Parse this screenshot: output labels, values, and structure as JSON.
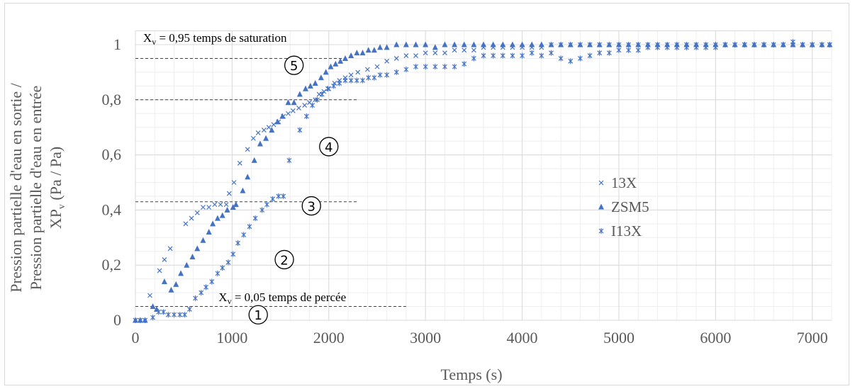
{
  "chart_data": {
    "type": "scatter",
    "xlabel": "Temps (s)",
    "ylabel_lines": [
      "Pression partielle d'eau en sortie /",
      "Pression partielle d'eau en entrée",
      "XPv (Pa / Pa)"
    ],
    "ylabel_xp": "XP",
    "ylabel_sub": "v",
    "ylabel_units": " (Pa / Pa)",
    "xlim": [
      0,
      7200
    ],
    "ylim": [
      0,
      1
    ],
    "x_ticks": [
      "0",
      "1000",
      "2000",
      "3000",
      "4000",
      "5000",
      "6000",
      "7000"
    ],
    "y_ticks": [
      "0",
      "0,2",
      "0,4",
      "0,6",
      "0,8",
      "1"
    ],
    "grid": true,
    "legend_position": "right",
    "series": [
      {
        "name": "13X",
        "marker": "x",
        "color": "#4472c4",
        "points": [
          [
            0,
            0
          ],
          [
            50,
            0
          ],
          [
            100,
            0
          ],
          [
            150,
            0.09
          ],
          [
            250,
            0.18
          ],
          [
            300,
            0.22
          ],
          [
            360,
            0.26
          ],
          [
            520,
            0.35
          ],
          [
            580,
            0.37
          ],
          [
            640,
            0.39
          ],
          [
            700,
            0.41
          ],
          [
            760,
            0.41
          ],
          [
            820,
            0.42
          ],
          [
            880,
            0.42
          ],
          [
            940,
            0.42
          ],
          [
            970,
            0.46
          ],
          [
            1020,
            0.5
          ],
          [
            1080,
            0.57
          ],
          [
            1160,
            0.62
          ],
          [
            1220,
            0.66
          ],
          [
            1270,
            0.68
          ],
          [
            1330,
            0.69
          ],
          [
            1380,
            0.7
          ],
          [
            1430,
            0.71
          ],
          [
            1480,
            0.72
          ],
          [
            1530,
            0.74
          ],
          [
            1580,
            0.75
          ],
          [
            1630,
            0.76
          ],
          [
            1690,
            0.77
          ],
          [
            1750,
            0.78
          ],
          [
            1800,
            0.79
          ],
          [
            1860,
            0.8
          ],
          [
            1900,
            0.82
          ],
          [
            1950,
            0.83
          ],
          [
            2000,
            0.84
          ],
          [
            2060,
            0.86
          ],
          [
            2110,
            0.87
          ],
          [
            2170,
            0.88
          ],
          [
            2230,
            0.89
          ],
          [
            2300,
            0.9
          ],
          [
            2400,
            0.91
          ],
          [
            2500,
            0.92
          ],
          [
            2600,
            0.94
          ],
          [
            2700,
            0.95
          ],
          [
            2800,
            0.96
          ],
          [
            2900,
            0.96
          ],
          [
            3000,
            0.97
          ],
          [
            3100,
            0.97
          ],
          [
            3200,
            0.97
          ],
          [
            3300,
            0.98
          ],
          [
            3400,
            0.98
          ],
          [
            3500,
            0.98
          ],
          [
            3600,
            0.99
          ],
          [
            3700,
            0.99
          ],
          [
            3800,
            0.99
          ],
          [
            3900,
            0.99
          ],
          [
            4000,
            0.99
          ],
          [
            4100,
            0.99
          ],
          [
            4200,
            0.99
          ],
          [
            4300,
            1.0
          ],
          [
            4400,
            1.0
          ],
          [
            4500,
            1.0
          ],
          [
            4600,
            1.0
          ],
          [
            4700,
            1.0
          ],
          [
            4800,
            1.0
          ],
          [
            4900,
            1.0
          ],
          [
            5000,
            1.0
          ],
          [
            5100,
            1.0
          ],
          [
            5200,
            1.0
          ],
          [
            5300,
            1.0
          ],
          [
            5400,
            1.0
          ],
          [
            5500,
            1.0
          ],
          [
            5600,
            1.0
          ],
          [
            5700,
            1.0
          ],
          [
            5800,
            1.0
          ],
          [
            5900,
            1.0
          ],
          [
            6000,
            1.0
          ],
          [
            6100,
            1.0
          ],
          [
            6200,
            1.0
          ],
          [
            6300,
            1.0
          ],
          [
            6400,
            1.0
          ],
          [
            6500,
            1.0
          ],
          [
            6600,
            1.0
          ],
          [
            6700,
            1.0
          ],
          [
            6800,
            1.0
          ],
          [
            6900,
            1.0
          ],
          [
            7000,
            1.0
          ],
          [
            7100,
            1.0
          ],
          [
            7180,
            1.0
          ]
        ]
      },
      {
        "name": "ZSM5",
        "marker": "triangle",
        "color": "#4472c4",
        "points": [
          [
            0,
            0
          ],
          [
            50,
            0
          ],
          [
            100,
            0
          ],
          [
            180,
            0.05
          ],
          [
            220,
            0.04
          ],
          [
            300,
            0.14
          ],
          [
            370,
            0.11
          ],
          [
            420,
            0.13
          ],
          [
            470,
            0.17
          ],
          [
            530,
            0.2
          ],
          [
            590,
            0.23
          ],
          [
            640,
            0.26
          ],
          [
            700,
            0.29
          ],
          [
            760,
            0.32
          ],
          [
            800,
            0.35
          ],
          [
            850,
            0.37
          ],
          [
            900,
            0.38
          ],
          [
            950,
            0.4
          ],
          [
            1010,
            0.41
          ],
          [
            1040,
            0.42
          ],
          [
            1110,
            0.47
          ],
          [
            1160,
            0.52
          ],
          [
            1230,
            0.58
          ],
          [
            1290,
            0.64
          ],
          [
            1350,
            0.66
          ],
          [
            1410,
            0.69
          ],
          [
            1470,
            0.72
          ],
          [
            1520,
            0.74
          ],
          [
            1580,
            0.79
          ],
          [
            1640,
            0.79
          ],
          [
            1700,
            0.82
          ],
          [
            1760,
            0.84
          ],
          [
            1810,
            0.85
          ],
          [
            1860,
            0.86
          ],
          [
            1920,
            0.88
          ],
          [
            1970,
            0.9
          ],
          [
            2020,
            0.92
          ],
          [
            2070,
            0.93
          ],
          [
            2120,
            0.94
          ],
          [
            2170,
            0.95
          ],
          [
            2230,
            0.96
          ],
          [
            2290,
            0.97
          ],
          [
            2350,
            0.97
          ],
          [
            2410,
            0.98
          ],
          [
            2470,
            0.98
          ],
          [
            2530,
            0.99
          ],
          [
            2600,
            0.99
          ],
          [
            2700,
            1.0
          ],
          [
            2800,
            1.0
          ],
          [
            2900,
            1.0
          ],
          [
            3000,
            1.0
          ],
          [
            3100,
            0.99
          ],
          [
            3200,
            1.0
          ],
          [
            3300,
            1.0
          ],
          [
            3400,
            1.0
          ],
          [
            3500,
            1.0
          ],
          [
            3600,
            1.0
          ],
          [
            3700,
            1.0
          ],
          [
            3800,
            1.0
          ],
          [
            3900,
            1.0
          ],
          [
            4000,
            1.0
          ],
          [
            4100,
            1.0
          ],
          [
            4200,
            1.0
          ],
          [
            4300,
            1.0
          ],
          [
            4400,
            1.0
          ],
          [
            4500,
            1.0
          ],
          [
            4600,
            1.0
          ],
          [
            4700,
            1.0
          ],
          [
            4800,
            1.0
          ],
          [
            4900,
            1.0
          ],
          [
            5000,
            1.0
          ],
          [
            5100,
            1.0
          ],
          [
            5200,
            1.0
          ],
          [
            5300,
            1.0
          ],
          [
            5400,
            1.0
          ],
          [
            5500,
            1.0
          ],
          [
            5600,
            1.0
          ],
          [
            5700,
            1.0
          ],
          [
            5800,
            1.0
          ],
          [
            5900,
            1.0
          ],
          [
            6000,
            1.0
          ],
          [
            6100,
            1.0
          ],
          [
            6200,
            1.0
          ],
          [
            6300,
            1.0
          ],
          [
            6400,
            1.0
          ],
          [
            6500,
            1.0
          ],
          [
            6600,
            1.0
          ],
          [
            6700,
            1.0
          ],
          [
            6800,
            1.0
          ],
          [
            6900,
            1.0
          ],
          [
            7000,
            1.0
          ],
          [
            7100,
            1.0
          ],
          [
            7180,
            1.0
          ]
        ]
      },
      {
        "name": "I13X",
        "marker": "asterisk",
        "color": "#4472c4",
        "points": [
          [
            0,
            0
          ],
          [
            50,
            0
          ],
          [
            100,
            0
          ],
          [
            180,
            0.01
          ],
          [
            240,
            0.03
          ],
          [
            290,
            0.03
          ],
          [
            340,
            0.02
          ],
          [
            400,
            0.02
          ],
          [
            460,
            0.02
          ],
          [
            510,
            0.02
          ],
          [
            560,
            0.04
          ],
          [
            620,
            0.08
          ],
          [
            680,
            0.1
          ],
          [
            730,
            0.12
          ],
          [
            790,
            0.14
          ],
          [
            850,
            0.17
          ],
          [
            900,
            0.19
          ],
          [
            960,
            0.21
          ],
          [
            1010,
            0.24
          ],
          [
            1060,
            0.28
          ],
          [
            1120,
            0.31
          ],
          [
            1180,
            0.34
          ],
          [
            1240,
            0.37
          ],
          [
            1310,
            0.4
          ],
          [
            1360,
            0.42
          ],
          [
            1420,
            0.44
          ],
          [
            1480,
            0.45
          ],
          [
            1530,
            0.45
          ],
          [
            1590,
            0.58
          ],
          [
            1700,
            0.69
          ],
          [
            1770,
            0.74
          ],
          [
            1830,
            0.78
          ],
          [
            1880,
            0.8
          ],
          [
            1930,
            0.82
          ],
          [
            1990,
            0.84
          ],
          [
            2050,
            0.85
          ],
          [
            2110,
            0.86
          ],
          [
            2170,
            0.87
          ],
          [
            2230,
            0.87
          ],
          [
            2290,
            0.87
          ],
          [
            2350,
            0.87
          ],
          [
            2410,
            0.88
          ],
          [
            2470,
            0.88
          ],
          [
            2530,
            0.89
          ],
          [
            2600,
            0.89
          ],
          [
            2700,
            0.9
          ],
          [
            2800,
            0.91
          ],
          [
            2900,
            0.92
          ],
          [
            3000,
            0.92
          ],
          [
            3100,
            0.92
          ],
          [
            3200,
            0.92
          ],
          [
            3300,
            0.92
          ],
          [
            3400,
            0.93
          ],
          [
            3500,
            0.95
          ],
          [
            3600,
            0.96
          ],
          [
            3700,
            0.96
          ],
          [
            3800,
            0.96
          ],
          [
            3900,
            0.96
          ],
          [
            4000,
            0.96
          ],
          [
            4100,
            0.97
          ],
          [
            4200,
            0.96
          ],
          [
            4300,
            0.97
          ],
          [
            4400,
            0.95
          ],
          [
            4500,
            0.94
          ],
          [
            4600,
            0.95
          ],
          [
            4700,
            0.96
          ],
          [
            4800,
            0.97
          ],
          [
            4900,
            0.97
          ],
          [
            5000,
            0.98
          ],
          [
            5100,
            0.98
          ],
          [
            5200,
            0.98
          ],
          [
            5300,
            0.99
          ],
          [
            5400,
            0.99
          ],
          [
            5500,
            0.99
          ],
          [
            5600,
            0.99
          ],
          [
            5700,
            0.99
          ],
          [
            5800,
            0.99
          ],
          [
            5900,
            0.99
          ],
          [
            6000,
            0.99
          ],
          [
            6100,
            1.0
          ],
          [
            6200,
            1.0
          ],
          [
            6300,
            1.0
          ],
          [
            6400,
            1.0
          ],
          [
            6500,
            1.0
          ],
          [
            6600,
            1.0
          ],
          [
            6700,
            1.0
          ],
          [
            6800,
            1.01
          ],
          [
            6900,
            1.0
          ],
          [
            7000,
            1.0
          ],
          [
            7100,
            1.0
          ],
          [
            7180,
            1.0
          ]
        ]
      }
    ],
    "reference_lines": [
      {
        "y": 0.95,
        "x_end": 2200
      },
      {
        "y": 0.8,
        "x_end": 2300
      },
      {
        "y": 0.43,
        "x_end": 2300
      },
      {
        "y": 0.05,
        "x_end": 2800
      }
    ],
    "annotations": [
      {
        "xv": "X",
        "sub": "v",
        "rest": " = 0,95 temps de saturation",
        "x": 80,
        "y": 1.01
      },
      {
        "xv": "X",
        "sub": "v",
        "rest": " = 0,05 temps de percée",
        "x": 860,
        "y": 0.07
      }
    ],
    "circled_numbers": [
      {
        "label": "①",
        "x": 1270,
        "y": 0.02
      },
      {
        "label": "②",
        "x": 1540,
        "y": 0.22
      },
      {
        "label": "③",
        "x": 1820,
        "y": 0.415
      },
      {
        "label": "④",
        "x": 2000,
        "y": 0.63
      },
      {
        "label": "⑤",
        "x": 1640,
        "y": 0.925
      }
    ]
  }
}
